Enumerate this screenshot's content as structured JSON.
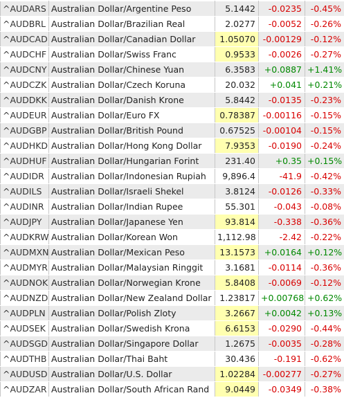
{
  "rows": [
    {
      "symbol": "^AUDARS",
      "name": "Australian Dollar/Argentine Peso",
      "price": "5.1442",
      "change": "-0.0235",
      "percent": "-0.45%",
      "dir": "neg",
      "hl": false
    },
    {
      "symbol": "^AUDBRL",
      "name": "Australian Dollar/Brazilian Real",
      "price": "2.0277",
      "change": "-0.0052",
      "percent": "-0.26%",
      "dir": "neg",
      "hl": false
    },
    {
      "symbol": "^AUDCAD",
      "name": "Australian Dollar/Canadian Dollar",
      "price": "1.05070",
      "change": "-0.00129",
      "percent": "-0.12%",
      "dir": "neg",
      "hl": true
    },
    {
      "symbol": "^AUDCHF",
      "name": "Australian Dollar/Swiss Franc",
      "price": "0.9533",
      "change": "-0.0026",
      "percent": "-0.27%",
      "dir": "neg",
      "hl": true
    },
    {
      "symbol": "^AUDCNY",
      "name": "Australian Dollar/Chinese Yuan",
      "price": "6.3583",
      "change": "+0.0887",
      "percent": "+1.41%",
      "dir": "pos",
      "hl": false
    },
    {
      "symbol": "^AUDCZK",
      "name": "Australian Dollar/Czech Koruna",
      "price": "20.032",
      "change": "+0.041",
      "percent": "+0.21%",
      "dir": "pos",
      "hl": false
    },
    {
      "symbol": "^AUDDKK",
      "name": "Australian Dollar/Danish Krone",
      "price": "5.8442",
      "change": "-0.0135",
      "percent": "-0.23%",
      "dir": "neg",
      "hl": false
    },
    {
      "symbol": "^AUDEUR",
      "name": "Australian Dollar/Euro FX",
      "price": "0.78387",
      "change": "-0.00116",
      "percent": "-0.15%",
      "dir": "neg",
      "hl": true
    },
    {
      "symbol": "^AUDGBP",
      "name": "Australian Dollar/British Pound",
      "price": "0.67525",
      "change": "-0.00104",
      "percent": "-0.15%",
      "dir": "neg",
      "hl": false
    },
    {
      "symbol": "^AUDHKD",
      "name": "Australian Dollar/Hong Kong Dollar",
      "price": "7.9353",
      "change": "-0.0190",
      "percent": "-0.24%",
      "dir": "neg",
      "hl": true
    },
    {
      "symbol": "^AUDHUF",
      "name": "Australian Dollar/Hungarian Forint",
      "price": "231.40",
      "change": "+0.35",
      "percent": "+0.15%",
      "dir": "pos",
      "hl": false
    },
    {
      "symbol": "^AUDIDR",
      "name": "Australian Dollar/Indonesian Rupiah",
      "price": "9,896.4",
      "change": "-41.9",
      "percent": "-0.42%",
      "dir": "neg",
      "hl": false
    },
    {
      "symbol": "^AUDILS",
      "name": "Australian Dollar/Israeli Shekel",
      "price": "3.8124",
      "change": "-0.0126",
      "percent": "-0.33%",
      "dir": "neg",
      "hl": false
    },
    {
      "symbol": "^AUDINR",
      "name": "Australian Dollar/Indian Rupee",
      "price": "55.301",
      "change": "-0.043",
      "percent": "-0.08%",
      "dir": "neg",
      "hl": false
    },
    {
      "symbol": "^AUDJPY",
      "name": "Australian Dollar/Japanese Yen",
      "price": "93.814",
      "change": "-0.338",
      "percent": "-0.36%",
      "dir": "neg",
      "hl": true
    },
    {
      "symbol": "^AUDKRW",
      "name": "Australian Dollar/Korean Won",
      "price": "1,112.98",
      "change": "-2.42",
      "percent": "-0.22%",
      "dir": "neg",
      "hl": false
    },
    {
      "symbol": "^AUDMXN",
      "name": "Australian Dollar/Mexican Peso",
      "price": "13.1573",
      "change": "+0.0164",
      "percent": "+0.12%",
      "dir": "pos",
      "hl": true
    },
    {
      "symbol": "^AUDMYR",
      "name": "Australian Dollar/Malaysian Ringgit",
      "price": "3.1681",
      "change": "-0.0114",
      "percent": "-0.36%",
      "dir": "neg",
      "hl": false
    },
    {
      "symbol": "^AUDNOK",
      "name": "Australian Dollar/Norwegian Krone",
      "price": "5.8408",
      "change": "-0.0069",
      "percent": "-0.12%",
      "dir": "neg",
      "hl": true
    },
    {
      "symbol": "^AUDNZD",
      "name": "Australian Dollar/New Zealand Dollar",
      "price": "1.23817",
      "change": "+0.00768",
      "percent": "+0.62%",
      "dir": "pos",
      "hl": false
    },
    {
      "symbol": "^AUDPLN",
      "name": "Australian Dollar/Polish Zloty",
      "price": "3.2667",
      "change": "+0.0042",
      "percent": "+0.13%",
      "dir": "pos",
      "hl": true
    },
    {
      "symbol": "^AUDSEK",
      "name": "Australian Dollar/Swedish Krona",
      "price": "6.6153",
      "change": "-0.0290",
      "percent": "-0.44%",
      "dir": "neg",
      "hl": true
    },
    {
      "symbol": "^AUDSGD",
      "name": "Australian Dollar/Singapore Dollar",
      "price": "1.2675",
      "change": "-0.0035",
      "percent": "-0.28%",
      "dir": "neg",
      "hl": false
    },
    {
      "symbol": "^AUDTHB",
      "name": "Australian Dollar/Thai Baht",
      "price": "30.436",
      "change": "-0.191",
      "percent": "-0.62%",
      "dir": "neg",
      "hl": false
    },
    {
      "symbol": "^AUDUSD",
      "name": "Australian Dollar/U.S. Dollar",
      "price": "1.02284",
      "change": "-0.00277",
      "percent": "-0.27%",
      "dir": "neg",
      "hl": true
    },
    {
      "symbol": "^AUDZAR",
      "name": "Australian Dollar/South African Rand",
      "price": "9.0449",
      "change": "-0.0349",
      "percent": "-0.38%",
      "dir": "neg",
      "hl": true
    }
  ],
  "colors": {
    "negative": "#d80000",
    "positive": "#008800",
    "highlight": "#ffffb0",
    "row_stripe": "#ebebeb"
  }
}
